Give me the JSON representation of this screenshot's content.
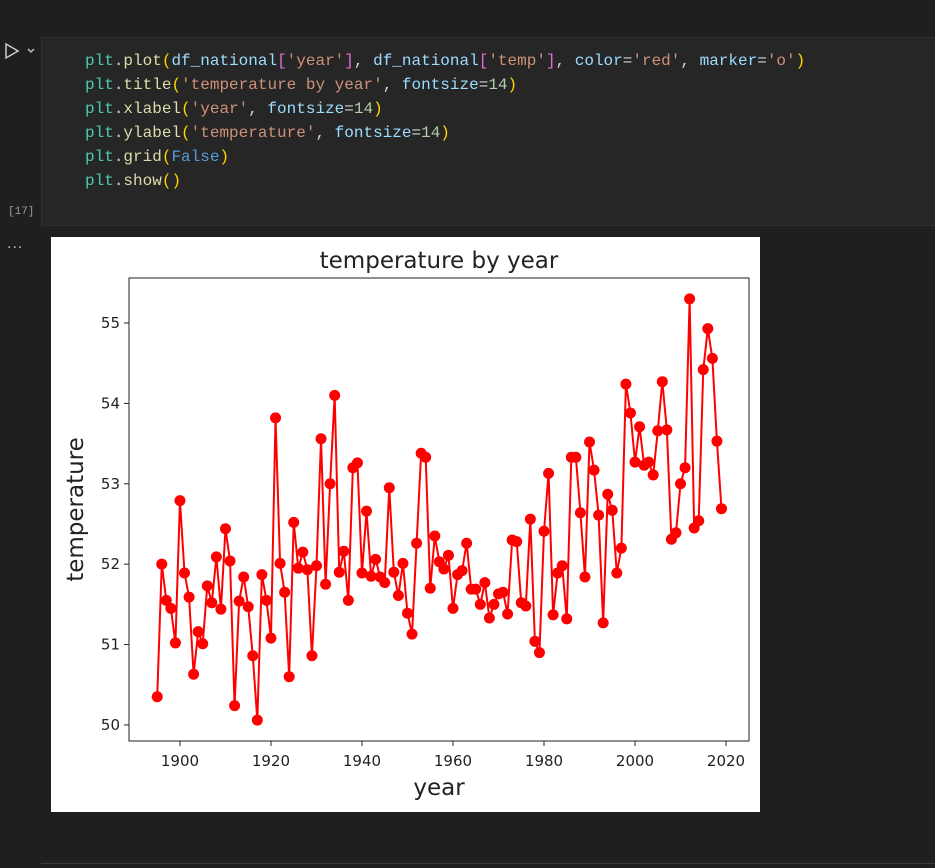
{
  "cell": {
    "execution_count": "[17]",
    "output_marker": "...",
    "code": [
      [
        "plt",
        ".",
        "plot",
        "(",
        "df_national",
        "[",
        "'year'",
        "]",
        ", ",
        "df_national",
        "[",
        "'temp'",
        "]",
        ", ",
        "color",
        "=",
        "'red'",
        ", ",
        "marker",
        "=",
        "'o'",
        ")"
      ],
      [
        "plt",
        ".",
        "title",
        "(",
        "'temperature by year'",
        ", ",
        "fontsize",
        "=",
        "14",
        ")"
      ],
      [
        "plt",
        ".",
        "xlabel",
        "(",
        "'year'",
        ", ",
        "fontsize",
        "=",
        "14",
        ")"
      ],
      [
        "plt",
        ".",
        "ylabel",
        "(",
        "'temperature'",
        ", ",
        "fontsize",
        "=",
        "14",
        ")"
      ],
      [
        "plt",
        ".",
        "grid",
        "(",
        "False",
        ")"
      ],
      [
        "plt",
        ".",
        "show",
        "(",
        ")"
      ]
    ]
  },
  "chart_data": {
    "type": "line",
    "title": "temperature by year",
    "xlabel": "year",
    "ylabel": "temperature",
    "x": [
      1895,
      1896,
      1897,
      1898,
      1899,
      1900,
      1901,
      1902,
      1903,
      1904,
      1905,
      1906,
      1907,
      1908,
      1909,
      1910,
      1911,
      1912,
      1913,
      1914,
      1915,
      1916,
      1917,
      1918,
      1919,
      1920,
      1921,
      1922,
      1923,
      1924,
      1925,
      1926,
      1927,
      1928,
      1929,
      1930,
      1931,
      1932,
      1933,
      1934,
      1935,
      1936,
      1937,
      1938,
      1939,
      1940,
      1941,
      1942,
      1943,
      1944,
      1945,
      1946,
      1947,
      1948,
      1949,
      1950,
      1951,
      1952,
      1953,
      1954,
      1955,
      1956,
      1957,
      1958,
      1959,
      1960,
      1961,
      1962,
      1963,
      1964,
      1965,
      1966,
      1967,
      1968,
      1969,
      1970,
      1971,
      1972,
      1973,
      1974,
      1975,
      1976,
      1977,
      1978,
      1979,
      1980,
      1981,
      1982,
      1983,
      1984,
      1985,
      1986,
      1987,
      1988,
      1989,
      1990,
      1991,
      1992,
      1993,
      1994,
      1995,
      1996,
      1997,
      1998,
      1999,
      2000,
      2001,
      2002,
      2003,
      2004,
      2005,
      2006,
      2007,
      2008,
      2009,
      2010,
      2011,
      2012,
      2013,
      2014,
      2015,
      2016,
      2017,
      2018,
      2019
    ],
    "series": [
      {
        "color": "red",
        "marker": "o",
        "values": [
          50.35,
          52.0,
          51.55,
          51.45,
          51.02,
          52.79,
          51.89,
          51.59,
          50.63,
          51.16,
          51.01,
          51.73,
          51.52,
          52.09,
          51.44,
          52.44,
          52.04,
          50.24,
          51.54,
          51.84,
          51.47,
          50.86,
          50.06,
          51.87,
          51.55,
          51.08,
          53.82,
          52.01,
          51.65,
          50.6,
          52.52,
          51.95,
          52.15,
          51.93,
          50.86,
          51.98,
          53.56,
          51.75,
          53.0,
          54.1,
          51.9,
          52.16,
          51.55,
          53.2,
          53.26,
          51.89,
          52.66,
          51.85,
          52.06,
          51.84,
          51.77,
          52.95,
          51.9,
          51.61,
          52.01,
          51.39,
          51.13,
          52.26,
          53.38,
          53.33,
          51.7,
          52.35,
          52.03,
          51.94,
          52.11,
          51.45,
          51.87,
          51.92,
          52.26,
          51.69,
          51.69,
          51.5,
          51.77,
          51.33,
          51.5,
          51.63,
          51.65,
          51.38,
          52.3,
          52.28,
          51.52,
          51.48,
          52.56,
          51.04,
          50.9,
          52.41,
          53.13,
          51.37,
          51.89,
          51.98,
          51.32,
          53.33,
          53.33,
          52.64,
          51.84,
          53.52,
          53.17,
          52.61,
          51.27,
          52.87,
          52.67,
          51.89,
          52.2,
          54.24,
          53.88,
          53.27,
          53.71,
          53.23,
          53.27,
          53.11,
          53.66,
          54.27,
          53.67,
          52.31,
          52.39,
          53.0,
          53.2,
          55.3,
          52.45,
          52.54,
          54.42,
          54.93,
          54.56,
          53.53,
          52.69
        ]
      }
    ],
    "xlim": [
      1888.8,
      2025.05
    ],
    "ylim": [
      49.8,
      55.56
    ],
    "xticks": [
      1900,
      1920,
      1940,
      1960,
      1980,
      2000,
      2020
    ],
    "yticks": [
      50,
      51,
      52,
      53,
      54,
      55
    ],
    "grid": false
  }
}
